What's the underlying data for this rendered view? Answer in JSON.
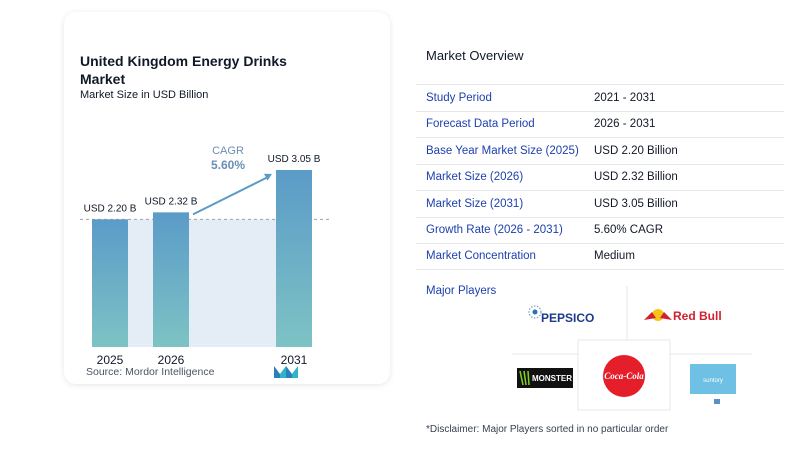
{
  "chart_data": {
    "type": "bar",
    "title": "United Kingdom Energy Drinks Market",
    "subtitle": "Market Size in USD Billion",
    "categories": [
      "2025",
      "2026",
      "2031"
    ],
    "values": [
      2.2,
      2.32,
      3.05
    ],
    "data_labels": [
      "USD 2.20 B",
      "USD 2.32 B",
      "USD 3.05 B"
    ],
    "ylim": [
      0,
      3.05
    ],
    "grid": false,
    "annotation": {
      "label": "CAGR",
      "value": "5.60%"
    },
    "colors": {
      "bar_top": "#5b9bc8",
      "bar_bottom": "#7dc3c4",
      "band": "#e4edf5"
    }
  },
  "source": {
    "label": "Source:",
    "name": "Mordor Intelligence"
  },
  "overview": {
    "title": "Market Overview",
    "rows": [
      {
        "key": "Study Period",
        "value": "2021 - 2031"
      },
      {
        "key": "Forecast Data Period",
        "value": "2026 - 2031"
      },
      {
        "key": "Base Year Market Size (2025)",
        "value": "USD 2.20 Billion"
      },
      {
        "key": "Market Size (2026)",
        "value": "USD 2.32 Billion"
      },
      {
        "key": "Market Size (2031)",
        "value": "USD 3.05 Billion"
      },
      {
        "key": "Growth Rate (2026 - 2031)",
        "value": "5.60% CAGR"
      },
      {
        "key": "Market Concentration",
        "value": "Medium"
      }
    ]
  },
  "major_players": {
    "title": "Major Players",
    "logos": [
      "PEPSICO",
      "Red Bull",
      "MONSTER",
      "Coca-Cola",
      "suntory"
    ],
    "disclaimer": "*Disclaimer: Major Players sorted in no particular order"
  }
}
